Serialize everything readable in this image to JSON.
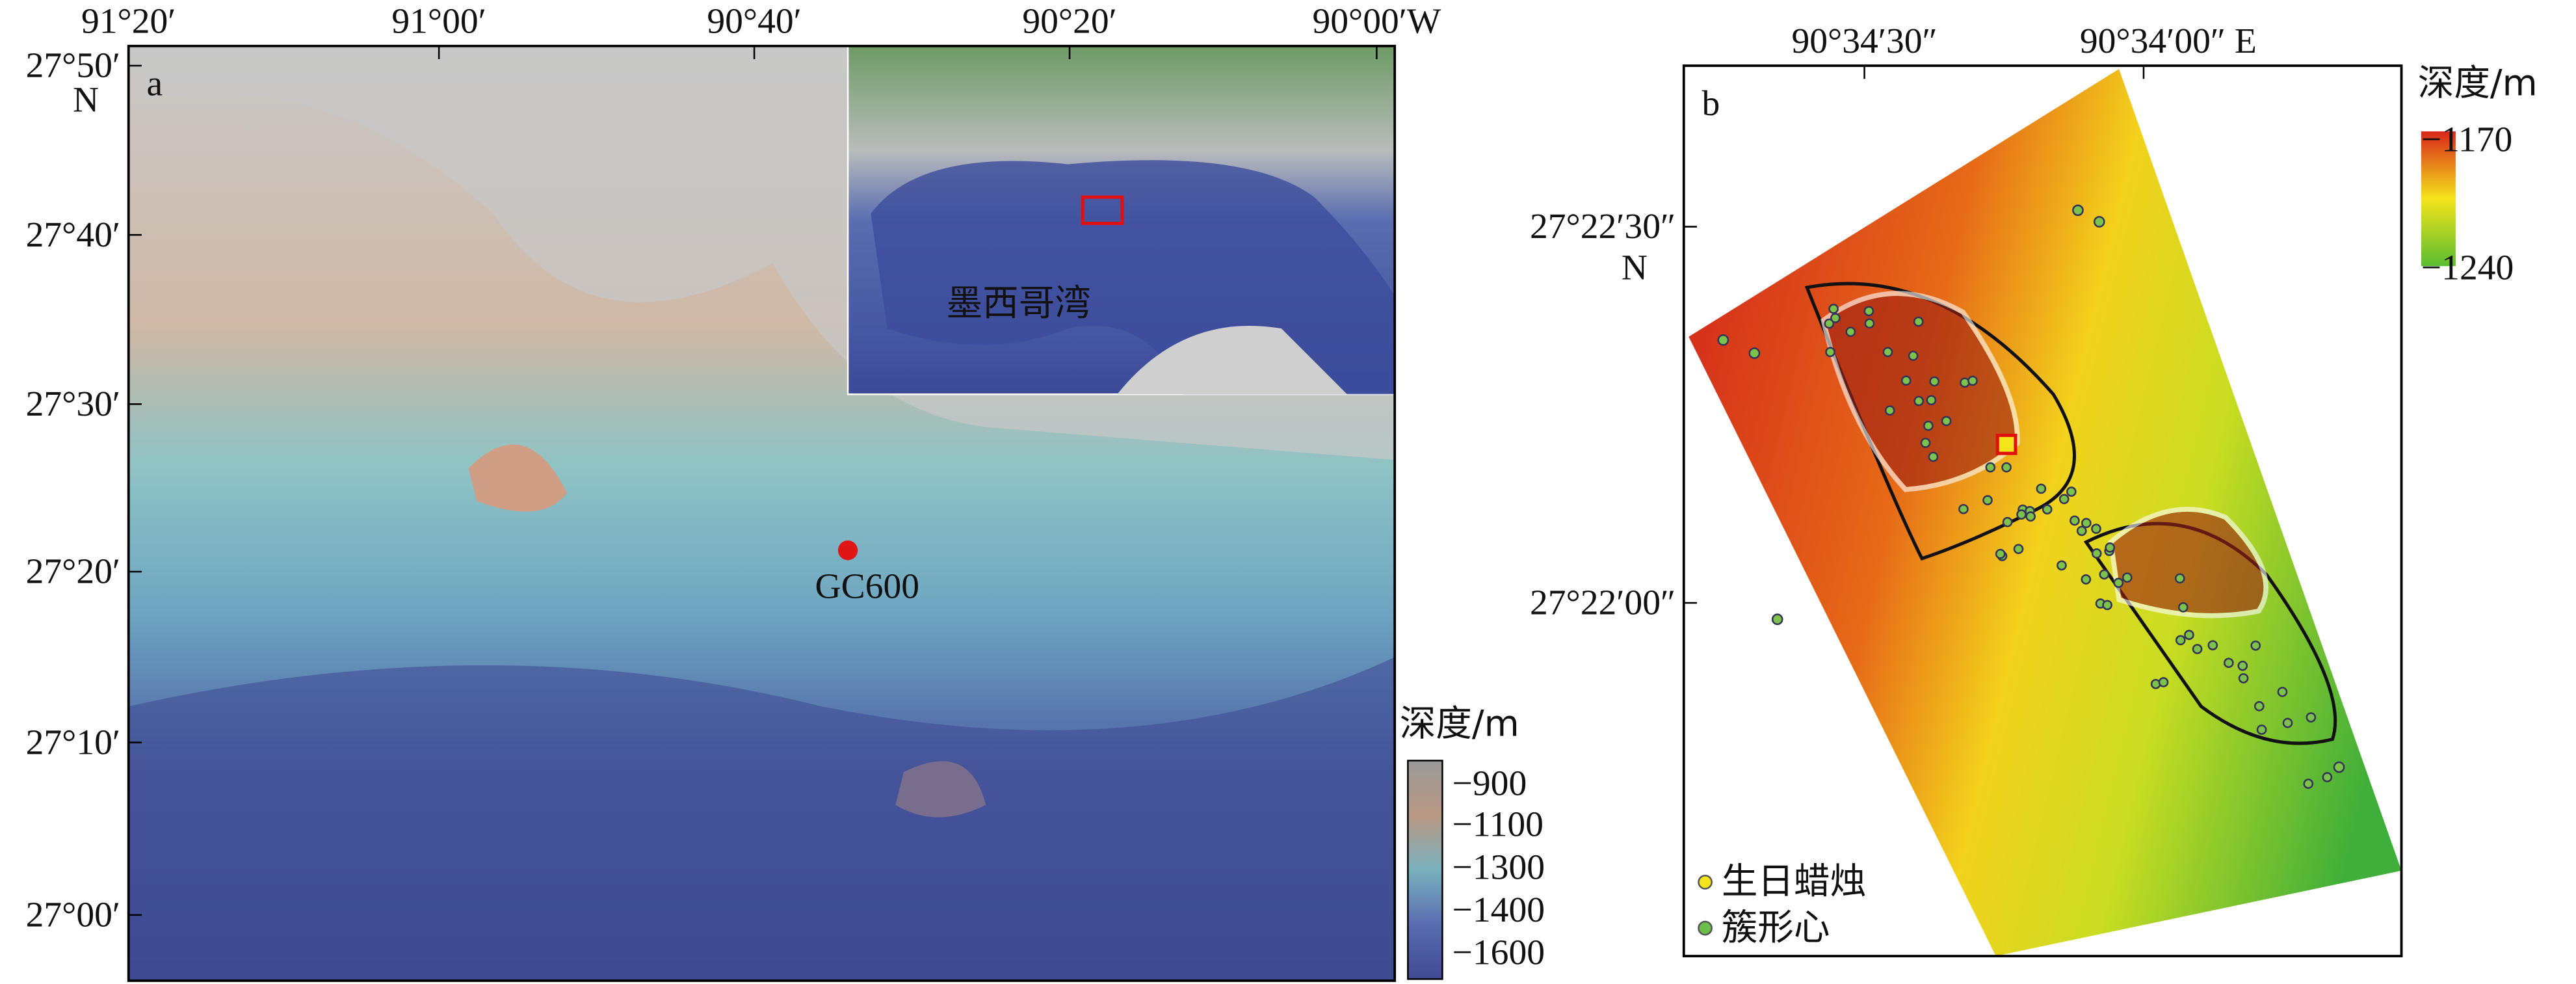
{
  "panel_a": {
    "label": "a",
    "x_ticks": [
      "91°20′",
      "91°00′",
      "90°40′",
      "90°20′",
      "90°00′W"
    ],
    "y_ticks": [
      "27°50′",
      "27°40′",
      "27°30′",
      "27°20′",
      "27°10′",
      "27°00′"
    ],
    "north": "N",
    "site": "GC600",
    "inset_label": "墨西哥湾",
    "colorbar_title": "深度/m",
    "colorbar_labels": [
      "−900",
      "−1100",
      "−1300",
      "−1400",
      "−1600"
    ]
  },
  "panel_b": {
    "label": "b",
    "x_ticks": [
      "90°34′30″",
      "90°34′00″ E"
    ],
    "y_ticks": [
      "27°22′30″",
      "27°22′00″"
    ],
    "north": "N",
    "colorbar_title": "深度/m",
    "colorbar_labels": [
      "−1170",
      "−1240"
    ],
    "legend": [
      "生日蜡烛",
      "簇形心"
    ]
  }
}
